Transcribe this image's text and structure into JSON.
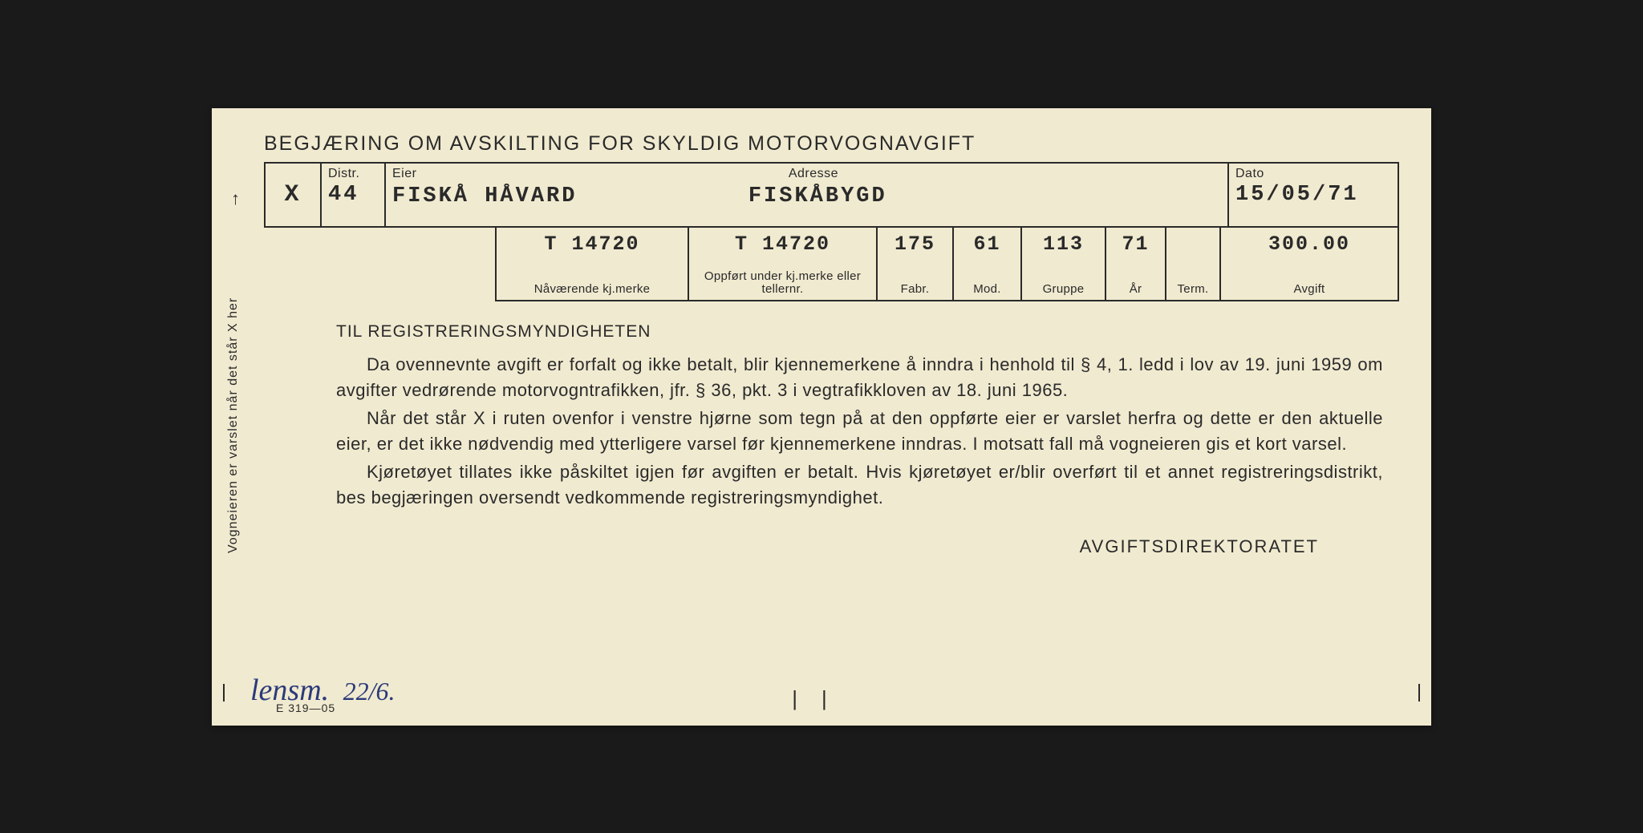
{
  "title": "BEGJÆRING OM AVSKILTING FOR SKYLDIG MOTORVOGNAVGIFT",
  "side_note": "Vogneieren er varslet når det står X her",
  "row1": {
    "x_mark": "X",
    "distr_label": "Distr.",
    "distr_value": "44",
    "eier_label": "Eier",
    "eier_value": "FISKÅ HÅVARD",
    "adresse_label": "Adresse",
    "adresse_value": "FISKÅBYGD",
    "dato_label": "Dato",
    "dato_value": "15/05/71"
  },
  "row2": {
    "nav_value": "T   14720",
    "nav_label": "Nåværende kj.merke",
    "opp_value": "T   14720",
    "opp_label": "Oppført under kj.merke eller tellernr.",
    "fabr_value": "175",
    "fabr_label": "Fabr.",
    "mod_value": "61",
    "mod_label": "Mod.",
    "gruppe_value": "113",
    "gruppe_label": "Gruppe",
    "ar_value": "71",
    "ar_label": "År",
    "term_value": "",
    "term_label": "Term.",
    "avgift_value": "300.00",
    "avgift_label": "Avgift"
  },
  "body": {
    "heading": "TIL REGISTRERINGSMYNDIGHETEN",
    "p1": "Da ovennevnte avgift er forfalt og ikke betalt, blir kjennemerkene å inndra i henhold til § 4, 1. ledd i lov av 19. juni 1959 om avgifter vedrørende motorvogntrafikken, jfr. § 36, pkt. 3 i vegtrafikkloven av 18. juni 1965.",
    "p2": "Når det står X i ruten ovenfor i venstre hjørne som tegn på at den oppførte eier er varslet herfra og dette er den aktuelle eier, er det ikke nødvendig med ytterligere varsel før kjenne­merkene inndras. I motsatt fall må vogneieren gis et kort varsel.",
    "p3": "Kjøretøyet tillates ikke påskiltet igjen før avgiften er betalt. Hvis kjøretøyet er/blir overført til et annet registreringsdistrikt, bes begjæringen oversendt vedkommende registreringsmyndighet.",
    "signature": "AVGIFTSDIREKTORATET"
  },
  "handwritten": {
    "text": "lensm.",
    "date": "22/6."
  },
  "form_code": "E 319—05",
  "colors": {
    "paper": "#f0ead0",
    "ink": "#2a2a2a",
    "pen": "#2b3a7a"
  }
}
